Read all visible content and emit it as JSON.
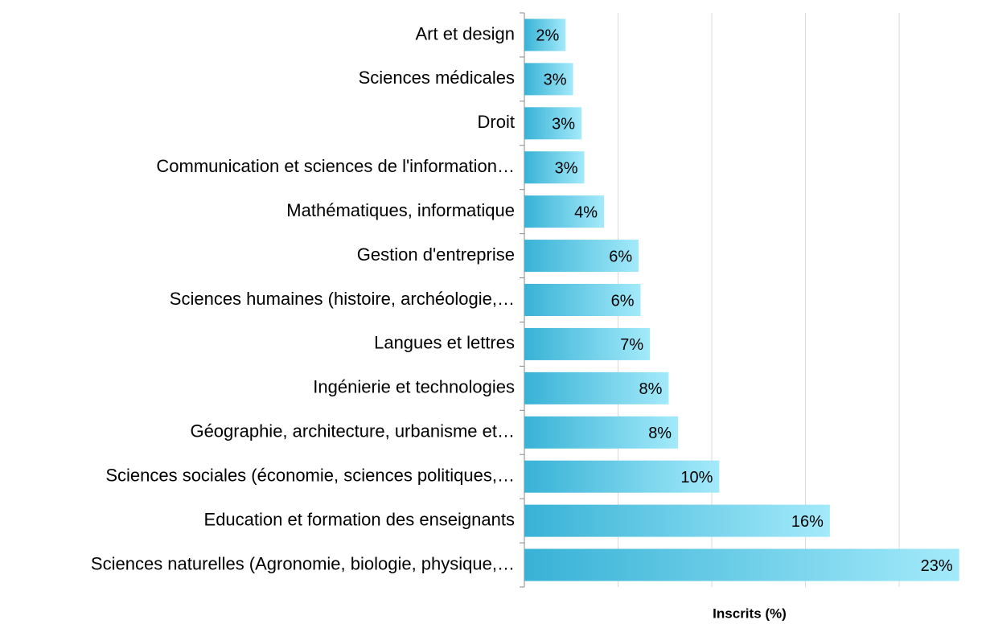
{
  "chart_data": {
    "type": "barh",
    "categories": [
      "Art et design",
      "Sciences médicales",
      "Droit",
      "Communication et sciences de l'information…",
      "Mathématiques, informatique",
      "Gestion d'entreprise",
      "Sciences humaines (histoire, archéologie,…",
      "Langues et lettres",
      "Ingénierie et technologies",
      "Géographie, architecture, urbanisme et…",
      "Sciences sociales (économie, sciences politiques,…",
      "Education et formation des enseignants",
      "Sciences naturelles (Agronomie, biologie, physique,…"
    ],
    "values": [
      2.2,
      2.6,
      3.05,
      3.2,
      4.25,
      6.1,
      6.2,
      6.7,
      7.7,
      8.2,
      10.4,
      16.3,
      23.2
    ],
    "value_labels": [
      "2%",
      "3%",
      "3%",
      "3%",
      "4%",
      "6%",
      "6%",
      "7%",
      "8%",
      "8%",
      "10%",
      "16%",
      "23%"
    ],
    "xlabel": "Inscrits (%)",
    "xlim": [
      0,
      23.3
    ],
    "xticks": [
      0,
      5,
      10,
      15,
      20
    ],
    "grid": true,
    "color": [
      "#38b2d6",
      "#a3eafa"
    ]
  }
}
